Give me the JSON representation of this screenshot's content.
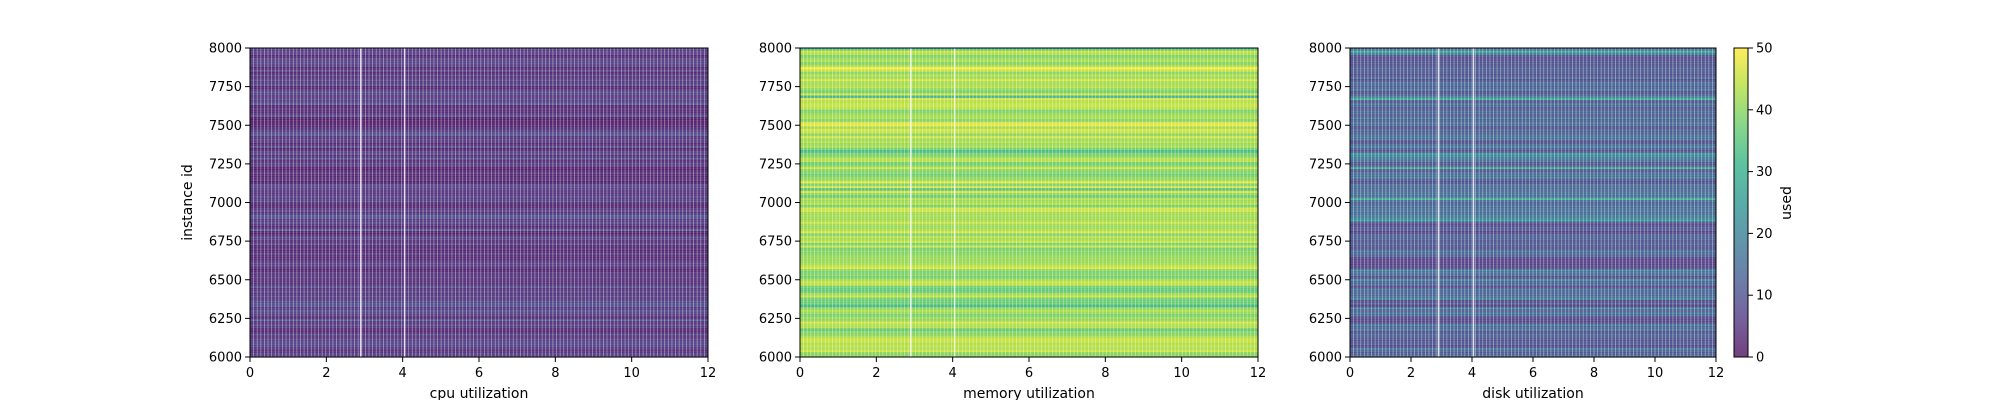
{
  "chart_data": [
    {
      "type": "heatmap",
      "title": "",
      "xlabel": "cpu utilization",
      "ylabel": "instance id",
      "xlim": [
        0,
        12
      ],
      "ylim": [
        6000,
        8000
      ],
      "xticks": [
        "0",
        "2",
        "4",
        "6",
        "8",
        "10",
        "12"
      ],
      "yticks": [
        "6000",
        "6250",
        "6500",
        "6750",
        "7000",
        "7250",
        "7500",
        "7750",
        "8000"
      ],
      "typical_value": 5,
      "value_range": [
        0,
        18
      ],
      "colormap": "viridis"
    },
    {
      "type": "heatmap",
      "title": "",
      "xlabel": "memory utilization",
      "ylabel": "",
      "xlim": [
        0,
        12
      ],
      "ylim": [
        6000,
        8000
      ],
      "xticks": [
        "0",
        "2",
        "4",
        "6",
        "8",
        "10",
        "12"
      ],
      "yticks": [
        "6000",
        "6250",
        "6500",
        "6750",
        "7000",
        "7250",
        "7500",
        "7750",
        "8000"
      ],
      "typical_value": 42,
      "value_range": [
        28,
        50
      ],
      "colormap": "viridis"
    },
    {
      "type": "heatmap",
      "title": "",
      "xlabel": "disk utilization",
      "ylabel": "",
      "xlim": [
        0,
        12
      ],
      "ylim": [
        6000,
        8000
      ],
      "xticks": [
        "0",
        "2",
        "4",
        "6",
        "8",
        "10",
        "12"
      ],
      "yticks": [
        "6000",
        "6250",
        "6500",
        "6750",
        "7000",
        "7250",
        "7500",
        "7750",
        "8000"
      ],
      "typical_value": 12,
      "value_range": [
        5,
        30
      ],
      "colormap": "viridis"
    }
  ],
  "colorbar": {
    "label": "used",
    "range": [
      0,
      50
    ],
    "ticks": [
      "0",
      "10",
      "20",
      "30",
      "40",
      "50"
    ],
    "colormap": "viridis"
  }
}
